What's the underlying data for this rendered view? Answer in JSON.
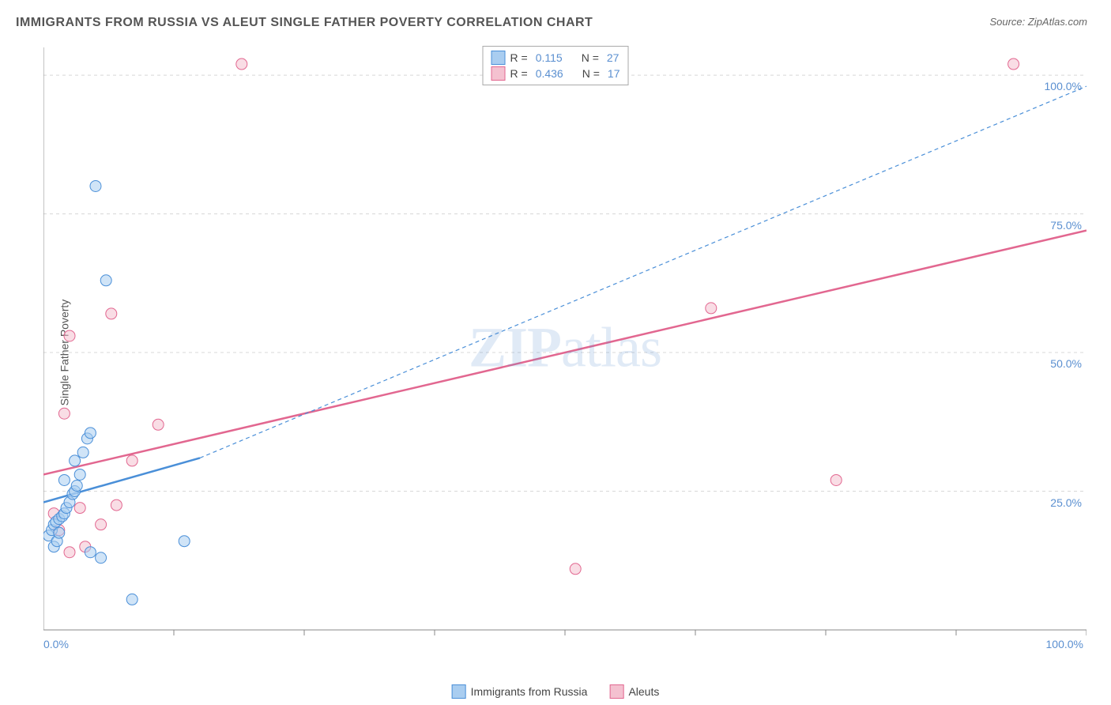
{
  "title": "IMMIGRANTS FROM RUSSIA VS ALEUT SINGLE FATHER POVERTY CORRELATION CHART",
  "source": "Source: ZipAtlas.com",
  "ylabel": "Single Father Poverty",
  "watermark_bold": "ZIP",
  "watermark_rest": "atlas",
  "chart": {
    "type": "scatter",
    "xlim": [
      0,
      100
    ],
    "ylim": [
      0,
      105
    ],
    "x_ticks_minor": [
      12.5,
      25,
      37.5,
      50,
      62.5,
      75,
      87.5,
      100
    ],
    "x_tick_labels": [
      {
        "v": 0,
        "label": "0.0%"
      },
      {
        "v": 100,
        "label": "100.0%"
      }
    ],
    "y_gridlines": [
      25,
      50,
      75,
      100
    ],
    "y_tick_labels": [
      {
        "v": 25,
        "label": "25.0%"
      },
      {
        "v": 50,
        "label": "50.0%"
      },
      {
        "v": 75,
        "label": "75.0%"
      },
      {
        "v": 100,
        "label": "100.0%"
      }
    ],
    "grid_color": "#d8d8d8",
    "axis_color": "#888888",
    "background": "#ffffff",
    "marker_radius": 7,
    "marker_opacity": 0.55,
    "series": [
      {
        "name": "Immigrants from Russia",
        "fill": "#a9cdf0",
        "stroke": "#4a8fd8",
        "r_value": "0.115",
        "n_value": "27",
        "trend": {
          "x1": 0,
          "y1": 23,
          "x2": 15,
          "y2": 31,
          "width": 2.5,
          "dash": "none"
        },
        "trend_ext": {
          "x1": 15,
          "y1": 31,
          "x2": 100,
          "y2": 98,
          "width": 1.2,
          "dash": "5,4"
        },
        "points": [
          {
            "x": 0.5,
            "y": 17
          },
          {
            "x": 0.8,
            "y": 18
          },
          {
            "x": 1.0,
            "y": 19
          },
          {
            "x": 1.2,
            "y": 19.5
          },
          {
            "x": 1.5,
            "y": 20
          },
          {
            "x": 1.8,
            "y": 20.5
          },
          {
            "x": 2.0,
            "y": 21
          },
          {
            "x": 2.2,
            "y": 22
          },
          {
            "x": 2.5,
            "y": 23
          },
          {
            "x": 2.8,
            "y": 24.5
          },
          {
            "x": 3.0,
            "y": 25
          },
          {
            "x": 3.2,
            "y": 26
          },
          {
            "x": 3.5,
            "y": 28
          },
          {
            "x": 1.0,
            "y": 15
          },
          {
            "x": 1.3,
            "y": 16
          },
          {
            "x": 4.5,
            "y": 14
          },
          {
            "x": 5.5,
            "y": 13
          },
          {
            "x": 3.8,
            "y": 32
          },
          {
            "x": 4.2,
            "y": 34.5
          },
          {
            "x": 4.5,
            "y": 35.5
          },
          {
            "x": 3.0,
            "y": 30.5
          },
          {
            "x": 13.5,
            "y": 16
          },
          {
            "x": 8.5,
            "y": 5.5
          },
          {
            "x": 5.0,
            "y": 80
          },
          {
            "x": 6.0,
            "y": 63
          },
          {
            "x": 2.0,
            "y": 27
          },
          {
            "x": 1.5,
            "y": 17.5
          }
        ]
      },
      {
        "name": "Aleuts",
        "fill": "#f4c1d0",
        "stroke": "#e26790",
        "r_value": "0.436",
        "n_value": "17",
        "trend": {
          "x1": 0,
          "y1": 28,
          "x2": 100,
          "y2": 72,
          "width": 2.5,
          "dash": "none"
        },
        "points": [
          {
            "x": 1.0,
            "y": 21
          },
          {
            "x": 1.5,
            "y": 18
          },
          {
            "x": 2.5,
            "y": 14
          },
          {
            "x": 3.5,
            "y": 22
          },
          {
            "x": 4.0,
            "y": 15
          },
          {
            "x": 5.5,
            "y": 19
          },
          {
            "x": 7.0,
            "y": 22.5
          },
          {
            "x": 8.5,
            "y": 30.5
          },
          {
            "x": 11.0,
            "y": 37
          },
          {
            "x": 2.0,
            "y": 39
          },
          {
            "x": 2.5,
            "y": 53
          },
          {
            "x": 6.5,
            "y": 57
          },
          {
            "x": 19,
            "y": 102
          },
          {
            "x": 51,
            "y": 11
          },
          {
            "x": 64,
            "y": 58
          },
          {
            "x": 76,
            "y": 27
          },
          {
            "x": 93,
            "y": 102
          }
        ]
      }
    ]
  },
  "legend_top": {
    "r_label": "R  =",
    "n_label": "N  ="
  },
  "legend_bottom_labels": [
    "Immigrants from Russia",
    "Aleuts"
  ]
}
